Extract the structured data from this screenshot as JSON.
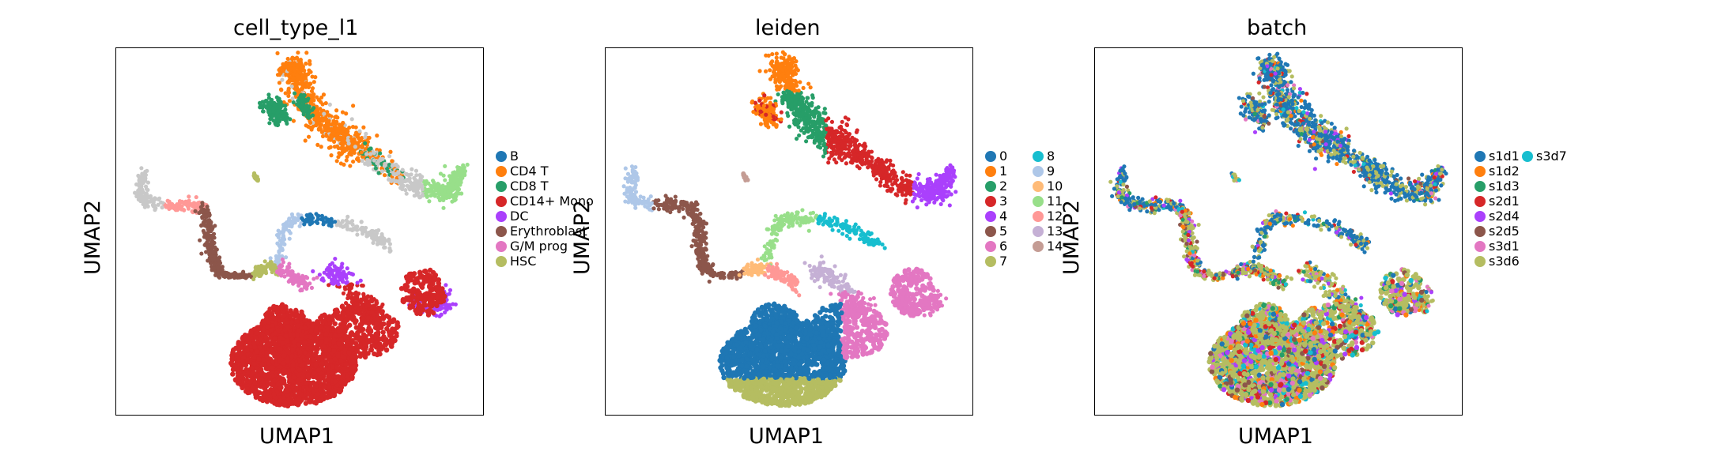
{
  "chart_data": [
    {
      "type": "scatter",
      "title": "cell_type_l1",
      "xlabel": "UMAP1",
      "ylabel": "UMAP2",
      "legend_placement": "right",
      "legend": [
        {
          "label": "B",
          "color": "#1f77b4"
        },
        {
          "label": "CD4 T",
          "color": "#ff7f0e"
        },
        {
          "label": "CD8 T",
          "color": "#279e68"
        },
        {
          "label": "CD14+ Mono",
          "color": "#d62728"
        },
        {
          "label": "DC",
          "color": "#aa40fc"
        },
        {
          "label": "Erythroblast",
          "color": "#8c564b"
        },
        {
          "label": "G/M prog",
          "color": "#e377c2"
        },
        {
          "label": "HSC",
          "color": "#b5bd61"
        }
      ]
    },
    {
      "type": "scatter",
      "title": "leiden",
      "xlabel": "UMAP1",
      "ylabel": "UMAP2",
      "legend_placement": "right",
      "legend": [
        {
          "label": "0",
          "color": "#1f77b4"
        },
        {
          "label": "1",
          "color": "#ff7f0e"
        },
        {
          "label": "2",
          "color": "#279e68"
        },
        {
          "label": "3",
          "color": "#d62728"
        },
        {
          "label": "4",
          "color": "#aa40fc"
        },
        {
          "label": "5",
          "color": "#8c564b"
        },
        {
          "label": "6",
          "color": "#e377c2"
        },
        {
          "label": "7",
          "color": "#b5bd61"
        },
        {
          "label": "8",
          "color": "#17becf"
        },
        {
          "label": "9",
          "color": "#aec7e8"
        },
        {
          "label": "10",
          "color": "#ffbb78"
        },
        {
          "label": "11",
          "color": "#98df8a"
        },
        {
          "label": "12",
          "color": "#ff9896"
        },
        {
          "label": "13",
          "color": "#c5b0d5"
        },
        {
          "label": "14",
          "color": "#c49c94"
        }
      ]
    },
    {
      "type": "scatter",
      "title": "batch",
      "xlabel": "UMAP1",
      "ylabel": "UMAP2",
      "legend_placement": "right",
      "legend": [
        {
          "label": "s1d1",
          "color": "#1f77b4"
        },
        {
          "label": "s1d2",
          "color": "#ff7f0e"
        },
        {
          "label": "s1d3",
          "color": "#279e68"
        },
        {
          "label": "s2d1",
          "color": "#d62728"
        },
        {
          "label": "s2d4",
          "color": "#aa40fc"
        },
        {
          "label": "s2d5",
          "color": "#8c564b"
        },
        {
          "label": "s3d1",
          "color": "#e377c2"
        },
        {
          "label": "s3d6",
          "color": "#b5bd61"
        },
        {
          "label": "s3d7",
          "color": "#17becf"
        }
      ]
    }
  ]
}
